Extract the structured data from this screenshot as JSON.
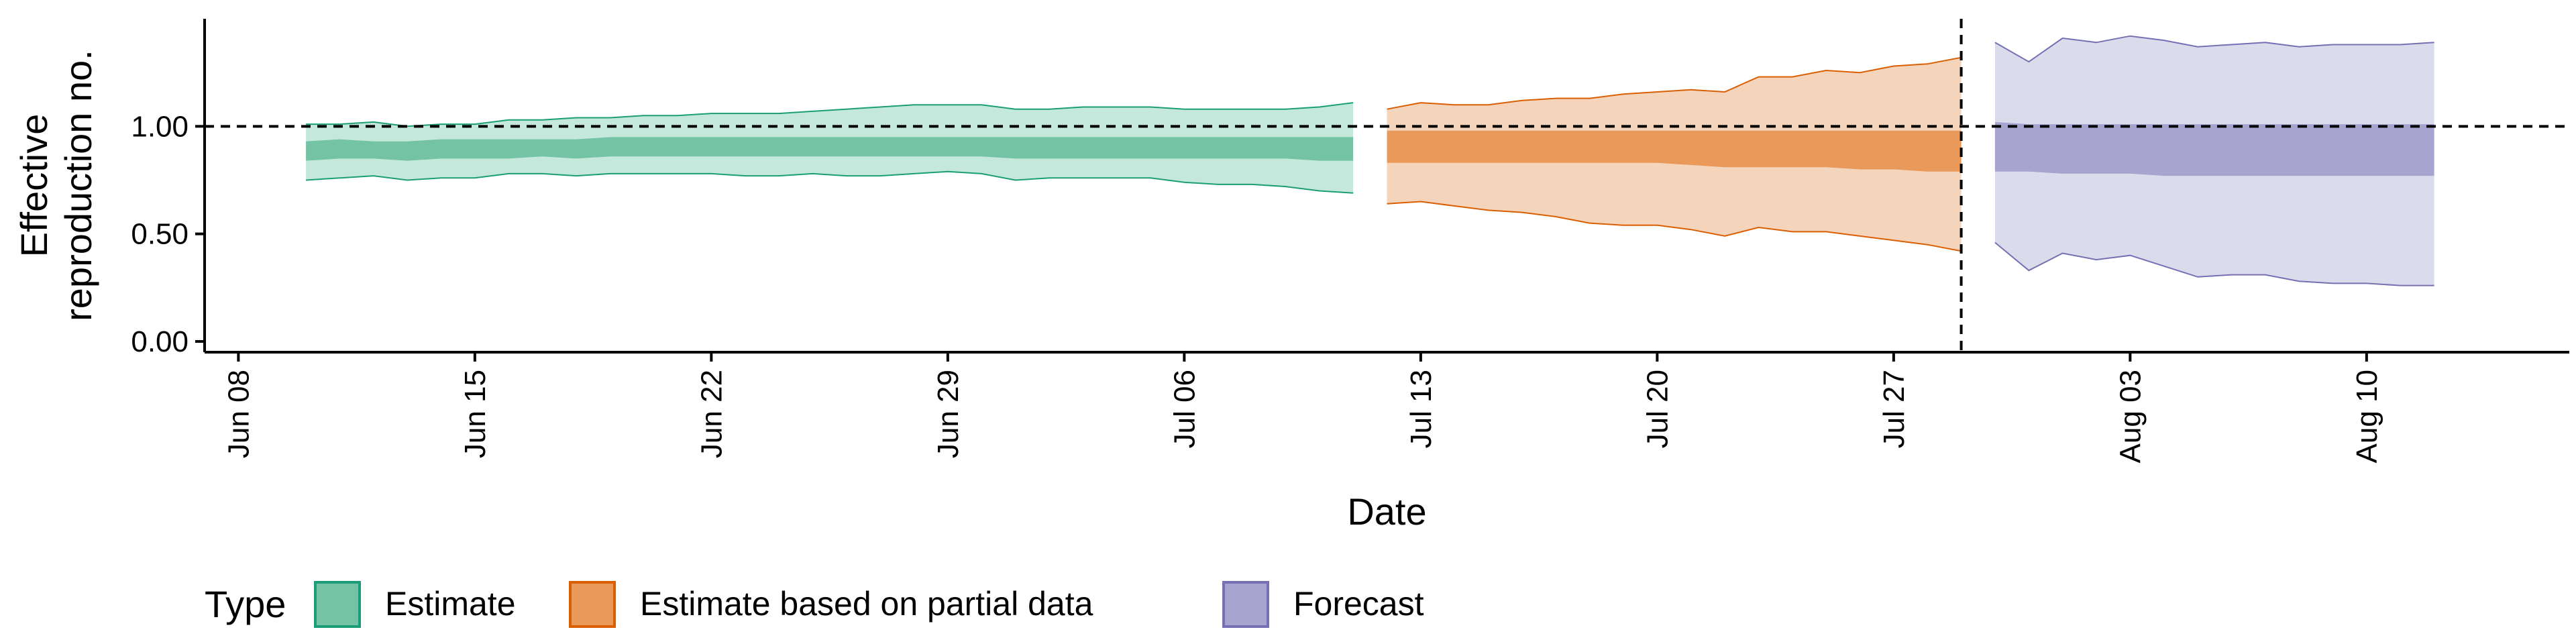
{
  "chart_data": {
    "type": "area",
    "xlabel": "Date",
    "ylabel_lines": [
      "Effective",
      "reproduction no."
    ],
    "x_range": [
      "2020-06-07",
      "2020-08-16"
    ],
    "ylim": [
      -0.05,
      1.5
    ],
    "x_ticks": [
      {
        "date": "2020-06-08",
        "label": "Jun 08"
      },
      {
        "date": "2020-06-15",
        "label": "Jun 15"
      },
      {
        "date": "2020-06-22",
        "label": "Jun 22"
      },
      {
        "date": "2020-06-29",
        "label": "Jun 29"
      },
      {
        "date": "2020-07-06",
        "label": "Jul 06"
      },
      {
        "date": "2020-07-13",
        "label": "Jul 13"
      },
      {
        "date": "2020-07-20",
        "label": "Jul 20"
      },
      {
        "date": "2020-07-27",
        "label": "Jul 27"
      },
      {
        "date": "2020-08-03",
        "label": "Aug 03"
      },
      {
        "date": "2020-08-10",
        "label": "Aug 10"
      }
    ],
    "y_ticks": [
      {
        "value": 0.0,
        "label": "0.00"
      },
      {
        "value": 0.5,
        "label": "0.50"
      },
      {
        "value": 1.0,
        "label": "1.00"
      }
    ],
    "reference_hline": 1.0,
    "reference_vline": "2020-07-29",
    "grid": false,
    "legend": {
      "title": "Type",
      "position": "bottom",
      "items": [
        {
          "label": "Estimate",
          "fill": "#74c3a5",
          "stroke": "#1b9e77"
        },
        {
          "label": "Estimate based on partial data",
          "fill": "#e9995a",
          "stroke": "#d95f02"
        },
        {
          "label": "Forecast",
          "fill": "#a8a4d0",
          "stroke": "#7570b3"
        }
      ]
    },
    "series": [
      {
        "type": "Estimate",
        "outer_fill": "#c5e8dc",
        "inner_fill": "#74c3a5",
        "line": "#1b9e77",
        "x": [
          "2020-06-10",
          "2020-06-11",
          "2020-06-12",
          "2020-06-13",
          "2020-06-14",
          "2020-06-15",
          "2020-06-16",
          "2020-06-17",
          "2020-06-18",
          "2020-06-19",
          "2020-06-20",
          "2020-06-21",
          "2020-06-22",
          "2020-06-23",
          "2020-06-24",
          "2020-06-25",
          "2020-06-26",
          "2020-06-27",
          "2020-06-28",
          "2020-06-29",
          "2020-06-30",
          "2020-07-01",
          "2020-07-02",
          "2020-07-03",
          "2020-07-04",
          "2020-07-05",
          "2020-07-06",
          "2020-07-07",
          "2020-07-08",
          "2020-07-09",
          "2020-07-10",
          "2020-07-11"
        ],
        "lower_90": [
          0.75,
          0.76,
          0.77,
          0.75,
          0.76,
          0.76,
          0.78,
          0.78,
          0.77,
          0.78,
          0.78,
          0.78,
          0.78,
          0.77,
          0.77,
          0.78,
          0.77,
          0.77,
          0.78,
          0.79,
          0.78,
          0.75,
          0.76,
          0.76,
          0.76,
          0.76,
          0.74,
          0.73,
          0.73,
          0.72,
          0.7,
          0.69
        ],
        "lower_50": [
          0.84,
          0.85,
          0.85,
          0.84,
          0.85,
          0.85,
          0.85,
          0.86,
          0.85,
          0.86,
          0.86,
          0.86,
          0.86,
          0.86,
          0.86,
          0.86,
          0.86,
          0.86,
          0.86,
          0.86,
          0.86,
          0.85,
          0.85,
          0.85,
          0.85,
          0.85,
          0.85,
          0.85,
          0.85,
          0.85,
          0.84,
          0.84
        ],
        "upper_50": [
          0.93,
          0.94,
          0.93,
          0.93,
          0.94,
          0.94,
          0.94,
          0.94,
          0.94,
          0.95,
          0.95,
          0.95,
          0.95,
          0.95,
          0.95,
          0.95,
          0.95,
          0.95,
          0.95,
          0.95,
          0.95,
          0.95,
          0.95,
          0.95,
          0.95,
          0.95,
          0.95,
          0.95,
          0.95,
          0.95,
          0.95,
          0.95
        ],
        "upper_90": [
          1.01,
          1.01,
          1.02,
          1.0,
          1.01,
          1.01,
          1.03,
          1.03,
          1.04,
          1.04,
          1.05,
          1.05,
          1.06,
          1.06,
          1.06,
          1.07,
          1.08,
          1.09,
          1.1,
          1.1,
          1.1,
          1.08,
          1.08,
          1.09,
          1.09,
          1.09,
          1.08,
          1.08,
          1.08,
          1.08,
          1.09,
          1.11
        ]
      },
      {
        "type": "Estimate based on partial data",
        "outer_fill": "#f5d4bc",
        "inner_fill": "#e9995a",
        "line": "#d95f02",
        "x": [
          "2020-07-12",
          "2020-07-13",
          "2020-07-14",
          "2020-07-15",
          "2020-07-16",
          "2020-07-17",
          "2020-07-18",
          "2020-07-19",
          "2020-07-20",
          "2020-07-21",
          "2020-07-22",
          "2020-07-23",
          "2020-07-24",
          "2020-07-25",
          "2020-07-26",
          "2020-07-27",
          "2020-07-28",
          "2020-07-29"
        ],
        "lower_90": [
          0.64,
          0.65,
          0.63,
          0.61,
          0.6,
          0.58,
          0.55,
          0.54,
          0.54,
          0.52,
          0.49,
          0.53,
          0.51,
          0.51,
          0.49,
          0.47,
          0.45,
          0.42
        ],
        "lower_50": [
          0.83,
          0.83,
          0.83,
          0.83,
          0.83,
          0.83,
          0.83,
          0.83,
          0.83,
          0.82,
          0.81,
          0.81,
          0.81,
          0.81,
          0.8,
          0.8,
          0.79,
          0.79
        ],
        "upper_50": [
          0.98,
          0.98,
          0.98,
          0.98,
          0.98,
          0.98,
          0.98,
          0.98,
          0.98,
          0.98,
          0.98,
          0.98,
          0.98,
          0.98,
          0.98,
          0.98,
          0.98,
          0.98
        ],
        "upper_90": [
          1.08,
          1.11,
          1.1,
          1.1,
          1.12,
          1.13,
          1.13,
          1.15,
          1.16,
          1.17,
          1.16,
          1.23,
          1.23,
          1.26,
          1.25,
          1.28,
          1.29,
          1.32
        ]
      },
      {
        "type": "Forecast",
        "outer_fill": "#dcdbec",
        "inner_fill": "#a8a4d0",
        "line": "#7570b3",
        "x": [
          "2020-07-30",
          "2020-07-31",
          "2020-08-01",
          "2020-08-02",
          "2020-08-03",
          "2020-08-04",
          "2020-08-05",
          "2020-08-06",
          "2020-08-07",
          "2020-08-08",
          "2020-08-09",
          "2020-08-10",
          "2020-08-11",
          "2020-08-12"
        ],
        "lower_90": [
          0.46,
          0.33,
          0.41,
          0.38,
          0.4,
          0.35,
          0.3,
          0.31,
          0.31,
          0.28,
          0.27,
          0.27,
          0.26,
          0.26
        ],
        "lower_50": [
          0.79,
          0.79,
          0.78,
          0.78,
          0.78,
          0.77,
          0.77,
          0.77,
          0.77,
          0.77,
          0.77,
          0.77,
          0.77,
          0.77
        ],
        "upper_50": [
          1.02,
          1.01,
          1.01,
          1.01,
          1.01,
          1.01,
          1.01,
          1.01,
          1.01,
          1.01,
          1.01,
          1.01,
          1.01,
          1.01
        ],
        "upper_90": [
          1.39,
          1.3,
          1.41,
          1.39,
          1.42,
          1.4,
          1.37,
          1.38,
          1.39,
          1.37,
          1.38,
          1.38,
          1.38,
          1.39
        ]
      }
    ]
  }
}
